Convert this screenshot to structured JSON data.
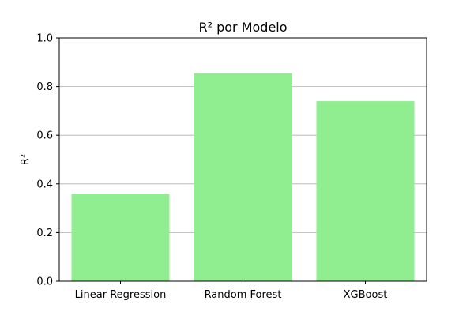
{
  "chart_data": {
    "type": "bar",
    "title": "R² por Modelo",
    "xlabel": "",
    "ylabel": "R²",
    "categories": [
      "Linear Regression",
      "Random Forest",
      "XGBoost"
    ],
    "values": [
      0.36,
      0.855,
      0.74
    ],
    "ylim": [
      0,
      1.0
    ],
    "yticks": [
      "0.0",
      "0.2",
      "0.4",
      "0.6",
      "0.8",
      "1.0"
    ],
    "grid": "y",
    "legend": "none",
    "bar_color": "#90ee90"
  }
}
